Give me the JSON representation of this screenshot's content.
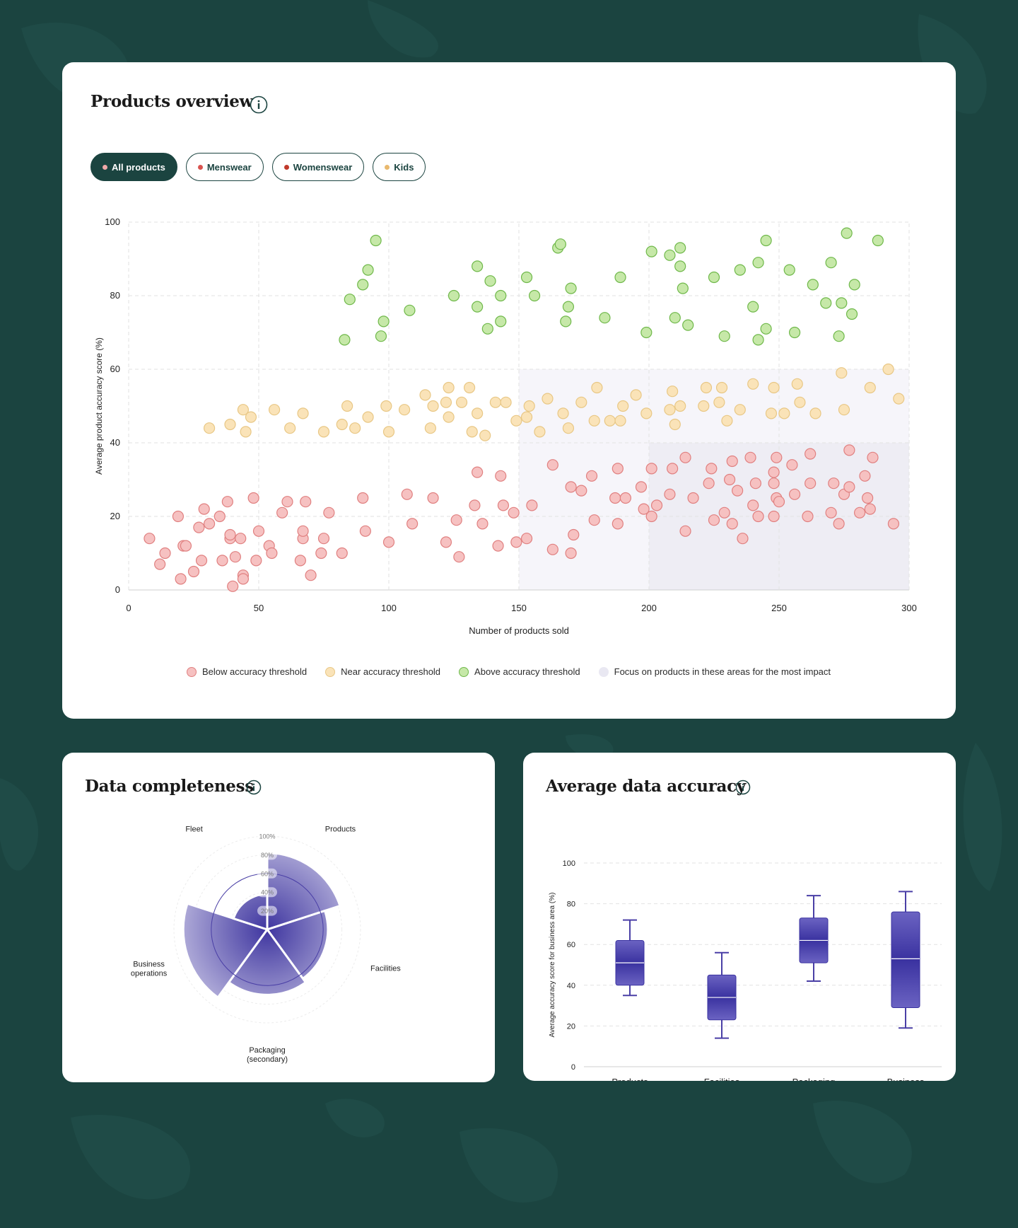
{
  "overview": {
    "title": "Products overview",
    "filters": [
      {
        "label": "All products",
        "color": "#f0a8a8",
        "active": true
      },
      {
        "label": "Menswear",
        "color": "#d9534f",
        "active": false
      },
      {
        "label": "Womenswear",
        "color": "#c0392b",
        "active": false
      },
      {
        "label": "Kids",
        "color": "#e9b96e",
        "active": false
      }
    ],
    "legend": [
      {
        "label": "Below accuracy threshold",
        "fill": "#f6c1c1",
        "stroke": "#e08080"
      },
      {
        "label": "Near accuracy threshold",
        "fill": "#fae3b8",
        "stroke": "#e8c785"
      },
      {
        "label": "Above accuracy threshold",
        "fill": "#c6e8a8",
        "stroke": "#6fb84a"
      },
      {
        "label": "Focus on products in these areas for the most impact",
        "fill": "#e9e8f2",
        "stroke": "#e9e8f2"
      }
    ]
  },
  "completeness": {
    "title": "Data completeness"
  },
  "accuracy": {
    "title": "Average data accuracy"
  },
  "chart_data": [
    {
      "type": "scatter",
      "xlabel": "Number of products sold",
      "ylabel": "Average product accuracy score (%)",
      "xlim": [
        0,
        300
      ],
      "ylim": [
        0,
        100
      ],
      "xticks": [
        0,
        50,
        100,
        150,
        200,
        250,
        300
      ],
      "yticks": [
        0,
        20,
        40,
        60,
        80,
        100
      ],
      "highlight_regions": [
        {
          "x": [
            150,
            300
          ],
          "y": [
            40,
            60
          ],
          "label": "Focus on products in these areas for the most impact"
        },
        {
          "x": [
            150,
            200
          ],
          "y": [
            0,
            40
          ],
          "label": "Focus on products in these areas for the most impact"
        },
        {
          "x": [
            200,
            300
          ],
          "y": [
            0,
            40
          ],
          "label": "Focus on products in these areas for the most impact"
        }
      ],
      "series": [
        {
          "name": "Above accuracy threshold",
          "color": "#6fb84a",
          "points": [
            [
              83,
              68
            ],
            [
              85,
              79
            ],
            [
              90,
              83
            ],
            [
              92,
              87
            ],
            [
              95,
              95
            ],
            [
              97,
              69
            ],
            [
              98,
              73
            ],
            [
              108,
              76
            ],
            [
              125,
              80
            ],
            [
              134,
              77
            ],
            [
              134,
              88
            ],
            [
              138,
              71
            ],
            [
              139,
              84
            ],
            [
              143,
              80
            ],
            [
              143,
              73
            ],
            [
              153,
              85
            ],
            [
              156,
              80
            ],
            [
              165,
              93
            ],
            [
              166,
              94
            ],
            [
              168,
              73
            ],
            [
              169,
              77
            ],
            [
              170,
              82
            ],
            [
              183,
              74
            ],
            [
              189,
              85
            ],
            [
              199,
              70
            ],
            [
              201,
              92
            ],
            [
              208,
              91
            ],
            [
              210,
              74
            ],
            [
              212,
              93
            ],
            [
              212,
              88
            ],
            [
              213,
              82
            ],
            [
              215,
              72
            ],
            [
              225,
              85
            ],
            [
              229,
              69
            ],
            [
              235,
              87
            ],
            [
              240,
              77
            ],
            [
              242,
              89
            ],
            [
              242,
              68
            ],
            [
              245,
              71
            ],
            [
              245,
              95
            ],
            [
              254,
              87
            ],
            [
              256,
              70
            ],
            [
              263,
              83
            ],
            [
              268,
              78
            ],
            [
              270,
              89
            ],
            [
              273,
              69
            ],
            [
              274,
              78
            ],
            [
              276,
              97
            ],
            [
              278,
              75
            ],
            [
              279,
              83
            ],
            [
              288,
              95
            ]
          ]
        },
        {
          "name": "Near accuracy threshold",
          "color": "#e8c785",
          "points": [
            [
              31,
              44
            ],
            [
              39,
              45
            ],
            [
              44,
              49
            ],
            [
              45,
              43
            ],
            [
              47,
              47
            ],
            [
              56,
              49
            ],
            [
              62,
              44
            ],
            [
              67,
              48
            ],
            [
              75,
              43
            ],
            [
              82,
              45
            ],
            [
              84,
              50
            ],
            [
              87,
              44
            ],
            [
              92,
              47
            ],
            [
              99,
              50
            ],
            [
              100,
              43
            ],
            [
              106,
              49
            ],
            [
              114,
              53
            ],
            [
              116,
              44
            ],
            [
              117,
              50
            ],
            [
              122,
              51
            ],
            [
              123,
              47
            ],
            [
              123,
              55
            ],
            [
              128,
              51
            ],
            [
              131,
              55
            ],
            [
              132,
              43
            ],
            [
              134,
              48
            ],
            [
              137,
              42
            ],
            [
              141,
              51
            ],
            [
              145,
              51
            ],
            [
              149,
              46
            ],
            [
              153,
              47
            ],
            [
              154,
              50
            ],
            [
              158,
              43
            ],
            [
              161,
              52
            ],
            [
              167,
              48
            ],
            [
              169,
              44
            ],
            [
              174,
              51
            ],
            [
              179,
              46
            ],
            [
              180,
              55
            ],
            [
              185,
              46
            ],
            [
              189,
              46
            ],
            [
              190,
              50
            ],
            [
              195,
              53
            ],
            [
              199,
              48
            ],
            [
              208,
              49
            ],
            [
              209,
              54
            ],
            [
              210,
              45
            ],
            [
              212,
              50
            ],
            [
              221,
              50
            ],
            [
              222,
              55
            ],
            [
              227,
              51
            ],
            [
              228,
              55
            ],
            [
              230,
              46
            ],
            [
              235,
              49
            ],
            [
              240,
              56
            ],
            [
              247,
              48
            ],
            [
              248,
              55
            ],
            [
              252,
              48
            ],
            [
              257,
              56
            ],
            [
              258,
              51
            ],
            [
              264,
              48
            ],
            [
              274,
              59
            ],
            [
              275,
              49
            ],
            [
              285,
              55
            ],
            [
              292,
              60
            ],
            [
              296,
              52
            ]
          ]
        },
        {
          "name": "Below accuracy threshold",
          "color": "#e08080",
          "points": [
            [
              8,
              14
            ],
            [
              12,
              7
            ],
            [
              14,
              10
            ],
            [
              19,
              20
            ],
            [
              20,
              3
            ],
            [
              21,
              12
            ],
            [
              22,
              12
            ],
            [
              25,
              5
            ],
            [
              27,
              17
            ],
            [
              28,
              8
            ],
            [
              29,
              22
            ],
            [
              31,
              18
            ],
            [
              35,
              20
            ],
            [
              36,
              8
            ],
            [
              38,
              24
            ],
            [
              39,
              14
            ],
            [
              39,
              15
            ],
            [
              40,
              1
            ],
            [
              41,
              9
            ],
            [
              43,
              14
            ],
            [
              44,
              4
            ],
            [
              44,
              3
            ],
            [
              48,
              25
            ],
            [
              49,
              8
            ],
            [
              50,
              16
            ],
            [
              54,
              12
            ],
            [
              55,
              10
            ],
            [
              59,
              21
            ],
            [
              61,
              24
            ],
            [
              66,
              8
            ],
            [
              67,
              14
            ],
            [
              67,
              16
            ],
            [
              68,
              24
            ],
            [
              70,
              4
            ],
            [
              74,
              10
            ],
            [
              75,
              14
            ],
            [
              77,
              21
            ],
            [
              82,
              10
            ],
            [
              90,
              25
            ],
            [
              91,
              16
            ],
            [
              100,
              13
            ],
            [
              107,
              26
            ],
            [
              109,
              18
            ],
            [
              117,
              25
            ],
            [
              122,
              13
            ],
            [
              126,
              19
            ],
            [
              127,
              9
            ],
            [
              133,
              23
            ],
            [
              134,
              32
            ],
            [
              136,
              18
            ],
            [
              142,
              12
            ],
            [
              143,
              31
            ],
            [
              144,
              23
            ],
            [
              148,
              21
            ],
            [
              149,
              13
            ],
            [
              153,
              14
            ],
            [
              155,
              23
            ],
            [
              163,
              11
            ],
            [
              163,
              34
            ],
            [
              170,
              10
            ],
            [
              170,
              28
            ],
            [
              171,
              15
            ],
            [
              174,
              27
            ],
            [
              178,
              31
            ],
            [
              179,
              19
            ],
            [
              187,
              25
            ],
            [
              188,
              33
            ],
            [
              188,
              18
            ],
            [
              191,
              25
            ],
            [
              197,
              28
            ],
            [
              198,
              22
            ],
            [
              201,
              20
            ],
            [
              201,
              33
            ],
            [
              203,
              23
            ],
            [
              208,
              26
            ],
            [
              209,
              33
            ],
            [
              214,
              16
            ],
            [
              214,
              36
            ],
            [
              217,
              25
            ],
            [
              223,
              29
            ],
            [
              224,
              33
            ],
            [
              225,
              19
            ],
            [
              229,
              21
            ],
            [
              231,
              30
            ],
            [
              232,
              18
            ],
            [
              232,
              35
            ],
            [
              234,
              27
            ],
            [
              236,
              14
            ],
            [
              239,
              36
            ],
            [
              240,
              23
            ],
            [
              241,
              29
            ],
            [
              242,
              20
            ],
            [
              248,
              20
            ],
            [
              248,
              29
            ],
            [
              248,
              32
            ],
            [
              249,
              25
            ],
            [
              249,
              36
            ],
            [
              250,
              24
            ],
            [
              255,
              34
            ],
            [
              256,
              26
            ],
            [
              261,
              20
            ],
            [
              262,
              29
            ],
            [
              262,
              37
            ],
            [
              270,
              21
            ],
            [
              271,
              29
            ],
            [
              273,
              18
            ],
            [
              275,
              26
            ],
            [
              277,
              38
            ],
            [
              277,
              28
            ],
            [
              281,
              21
            ],
            [
              283,
              31
            ],
            [
              284,
              25
            ],
            [
              285,
              22
            ],
            [
              286,
              36
            ],
            [
              294,
              18
            ]
          ]
        }
      ]
    },
    {
      "type": "radar",
      "title": "Data completeness",
      "radial_ticks": [
        "20%",
        "40%",
        "60%",
        "80%",
        "100%"
      ],
      "rmax": 100,
      "target_ring": 60,
      "categories": [
        {
          "label": "Products",
          "value": 82
        },
        {
          "label": "Facilities",
          "value": 65
        },
        {
          "label": "Packaging (secondary)",
          "value": 70
        },
        {
          "label": "Business operations",
          "value": 90
        },
        {
          "label": "Fleet",
          "value": 38
        }
      ]
    },
    {
      "type": "box",
      "ylabel": "Average accuracy score for business area (%)",
      "ylim": [
        0,
        100
      ],
      "yticks": [
        0,
        20,
        40,
        60,
        80,
        100
      ],
      "color": "#4a3fa6",
      "boxes": [
        {
          "label": "Products",
          "min": 35,
          "q1": 40,
          "median": 51,
          "q3": 62,
          "max": 72
        },
        {
          "label": "Facilities",
          "min": 14,
          "q1": 23,
          "median": 34,
          "q3": 45,
          "max": 56
        },
        {
          "label": "Packaging (secondary)",
          "min": 42,
          "q1": 51,
          "median": 62,
          "q3": 73,
          "max": 84
        },
        {
          "label": "Business operations",
          "min": 19,
          "q1": 29,
          "median": 53,
          "q3": 76,
          "max": 86
        }
      ]
    }
  ]
}
